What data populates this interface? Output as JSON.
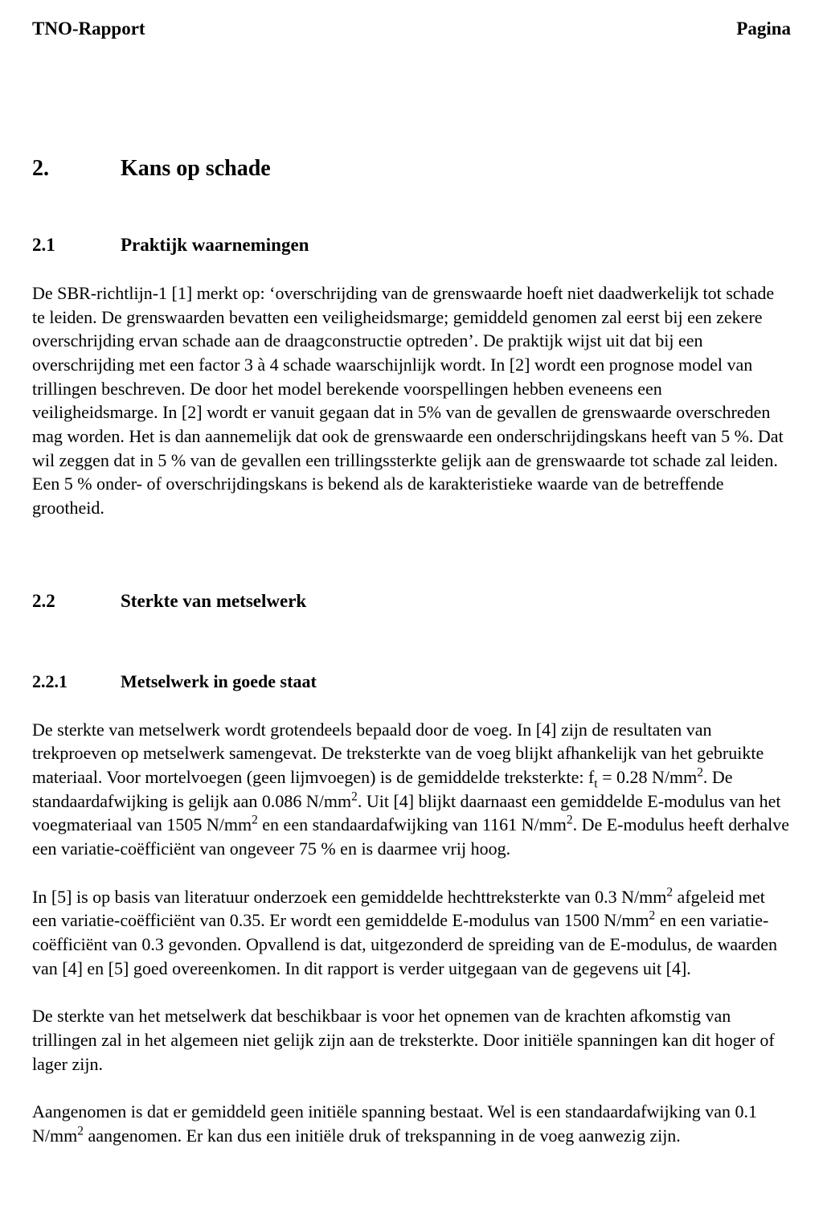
{
  "header": {
    "left": "TNO-Rapport",
    "right": "Pagina"
  },
  "section": {
    "number": "2.",
    "title": "Kans op schade"
  },
  "sub_2_1": {
    "number": "2.1",
    "title": "Praktijk waarnemingen",
    "para": "De SBR-richtlijn-1 [1] merkt op: ‘overschrijding van de grenswaarde hoeft niet daadwerkelijk tot schade te leiden. De grenswaarden bevatten een veiligheidsmarge; gemiddeld genomen zal eerst bij een zekere overschrijding ervan schade aan de draagconstructie optreden’. De praktijk wijst uit dat bij een overschrijding met een factor 3 à 4 schade waarschijnlijk wordt. In [2] wordt een prognose model van trillingen beschreven. De door het model berekende voorspellingen hebben eveneens een veiligheidsmarge. In [2] wordt er vanuit gegaan dat in 5% van de gevallen de grenswaarde overschreden mag worden. Het is dan aannemelijk dat ook de grenswaarde een onderschrijdingskans heeft van 5 %. Dat wil zeggen dat in 5 % van de gevallen een trillingssterkte gelijk aan de grenswaarde tot schade zal leiden. Een 5 % onder- of overschrijdingskans is bekend als de karakteristieke waarde van de betreffende grootheid."
  },
  "sub_2_2": {
    "number": "2.2",
    "title": "Sterkte van metselwerk"
  },
  "sub_2_2_1": {
    "number": "2.2.1",
    "title": "Metselwerk in goede staat",
    "p_start": "De sterkte van metselwerk wordt grotendeels bepaald door de voeg. In [4] zijn de resultaten van trekproeven op metselwerk samengevat. De treksterkte van de voeg blijkt afhankelijk van het gebruikte materiaal. Voor mortelvoegen (geen lijmvoegen) is de gemiddelde treksterkte: f",
    "p_after_ft": " = 0.28 N/mm",
    "p_after_028unit": ". De standaardafwijking is gelijk aan 0.086 N/mm",
    "p_after_086unit": ". Uit [4] blijkt daarnaast een gemiddelde E-modulus van het voegmateriaal van 1505 N/mm",
    "p_after_1505unit": " en een standaardafwijking van 1161 N/mm",
    "p_after_1161unit": ". De E-modulus heeft derhalve een variatie-coëfficiënt van ongeveer 75 % en is daarmee vrij hoog.",
    "p2_start": "In [5] is op basis van literatuur onderzoek een gemiddelde hechttreksterkte van 0.3 N/mm",
    "p2_mid1": " afgeleid met een variatie-coëfficiënt van 0.35. Er wordt een gemiddelde E-modulus van 1500 N/mm",
    "p2_mid2": " en een variatie-coëfficiënt van 0.3 gevonden. Opvallend is dat, uitgezonderd de spreiding van de E-modulus, de waarden van [4] en [5] goed overeenkomen. In dit rapport is verder uitgegaan van de gegevens uit [4].",
    "p3": "De sterkte van het metselwerk dat beschikbaar is voor het opnemen van de krachten afkomstig van trillingen zal in het algemeen niet gelijk zijn aan de treksterkte. Door initiële spanningen kan dit hoger of lager zijn.",
    "p4_start": "Aangenomen is dat er gemiddeld geen initiële spanning bestaat. Wel is een standaardafwijking van 0.1 N/mm",
    "p4_end": " aangenomen. Er kan dus een initiële druk of trekspanning in de voeg aanwezig zijn."
  },
  "exp2": "2",
  "sub_t": "t"
}
